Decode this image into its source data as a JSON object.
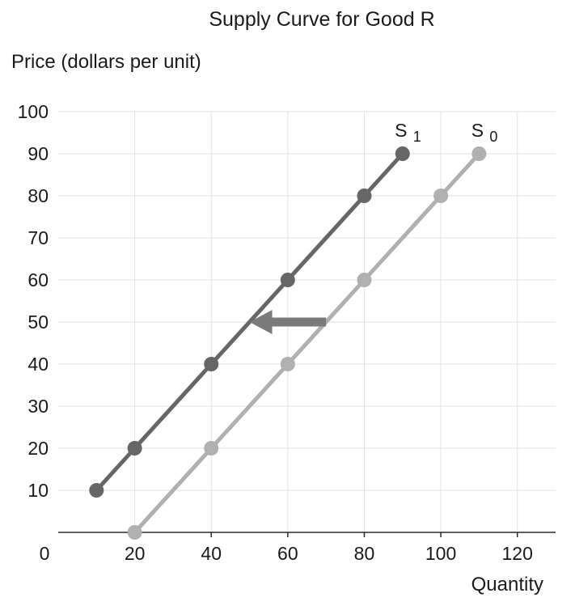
{
  "chart_data": {
    "type": "line",
    "title": "Supply Curve for Good R",
    "xlabel": "Quantity",
    "ylabel": "Price (dollars per unit)",
    "xlim": [
      0,
      130
    ],
    "ylim": [
      0,
      100
    ],
    "x_ticks": [
      "0",
      "20",
      "40",
      "60",
      "80",
      "100",
      "120"
    ],
    "y_ticks": [
      "10",
      "20",
      "30",
      "40",
      "50",
      "60",
      "70",
      "80",
      "90",
      "100"
    ],
    "grid": true,
    "series": [
      {
        "name": "S",
        "subscript": "1",
        "color": "#666666",
        "points": [
          {
            "x": 10,
            "y": 10
          },
          {
            "x": 20,
            "y": 20
          },
          {
            "x": 40,
            "y": 40
          },
          {
            "x": 60,
            "y": 60
          },
          {
            "x": 80,
            "y": 80
          },
          {
            "x": 90,
            "y": 90
          }
        ]
      },
      {
        "name": "S",
        "subscript": "0",
        "color": "#b0b0b0",
        "points": [
          {
            "x": 20,
            "y": 0
          },
          {
            "x": 40,
            "y": 20
          },
          {
            "x": 60,
            "y": 40
          },
          {
            "x": 80,
            "y": 60
          },
          {
            "x": 100,
            "y": 80
          },
          {
            "x": 110,
            "y": 90
          }
        ]
      }
    ],
    "annotations": [
      {
        "type": "arrow",
        "from": {
          "x": 70,
          "y": 50
        },
        "to": {
          "x": 50,
          "y": 50
        },
        "color": "#7a7a7a",
        "meaning": "leftward shift of supply"
      }
    ]
  }
}
